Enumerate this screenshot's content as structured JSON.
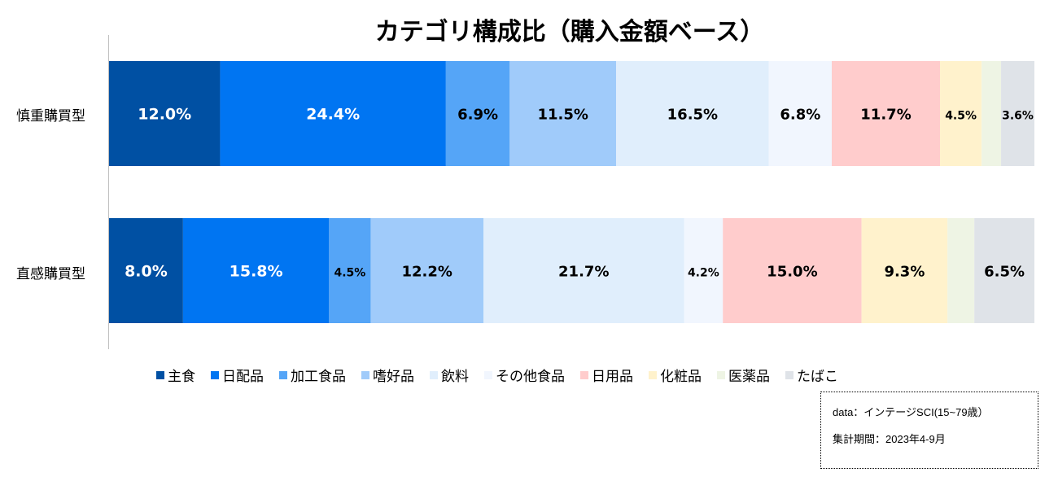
{
  "chart_data": {
    "type": "bar",
    "orientation": "horizontal-stacked-100",
    "title": "カテゴリ構成比（購入金額ベース）",
    "categories": [
      "慎重購買型",
      "直感購買型"
    ],
    "series": [
      {
        "name": "主食",
        "color": "#0050A3",
        "values": [
          12.0,
          8.0
        ],
        "labels": [
          "12.0%",
          "8.0%"
        ]
      },
      {
        "name": "日配品",
        "color": "#0075F2",
        "values": [
          24.4,
          15.8
        ],
        "labels": [
          "24.4%",
          "15.8%"
        ]
      },
      {
        "name": "加工食品",
        "color": "#55A5F7",
        "values": [
          6.9,
          4.5
        ],
        "labels": [
          "6.9%",
          "4.5%"
        ]
      },
      {
        "name": "嗜好品",
        "color": "#A0CBFA",
        "values": [
          11.5,
          12.2
        ],
        "labels": [
          "11.5%",
          "12.2%"
        ]
      },
      {
        "name": "飲料",
        "color": "#E0EEFC",
        "values": [
          16.5,
          21.7
        ],
        "labels": [
          "16.5%",
          "21.7%"
        ]
      },
      {
        "name": "その他食品",
        "color": "#F1F6FE",
        "values": [
          6.8,
          4.2
        ],
        "labels": [
          "6.8%",
          "4.2%"
        ]
      },
      {
        "name": "日用品",
        "color": "#FFCCCC",
        "values": [
          11.7,
          15.0
        ],
        "labels": [
          "11.7%",
          "15.0%"
        ]
      },
      {
        "name": "化粧品",
        "color": "#FFF2CC",
        "values": [
          4.5,
          9.3
        ],
        "labels": [
          "4.5%",
          "9.3%"
        ]
      },
      {
        "name": "医薬品",
        "color": "#EEF4E4",
        "values": [
          2.1,
          2.9
        ],
        "labels": [
          "",
          ""
        ]
      },
      {
        "name": "たばこ",
        "color": "#DFE3E8",
        "values": [
          3.6,
          6.5
        ],
        "labels": [
          "3.6%",
          "6.5%"
        ]
      }
    ],
    "xlim": [
      0,
      100
    ],
    "grid": false,
    "legend": "bottom"
  },
  "source_note": {
    "line1": "data：インテージSCI(15~79歳）",
    "line2": "集計期間：2023年4-9月"
  }
}
